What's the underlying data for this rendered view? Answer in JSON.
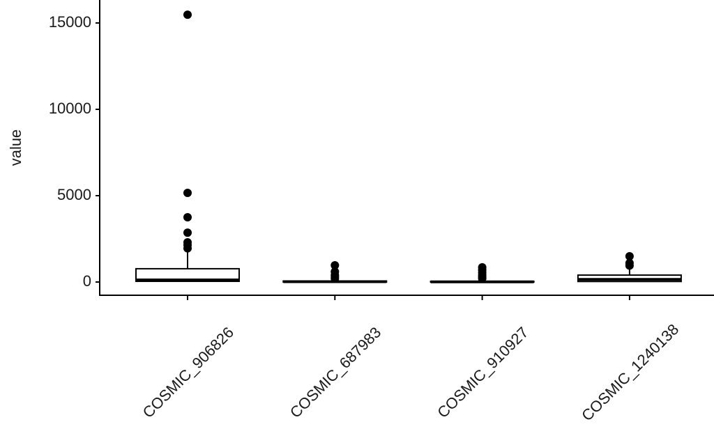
{
  "chart_data": {
    "type": "boxplot",
    "y_label": "value",
    "categories": [
      "COSMIC_906826",
      "COSMIC_687983",
      "COSMIC_910927",
      "COSMIC_1240138"
    ],
    "boxes": [
      {
        "min": 0,
        "q1": 40,
        "median": 120,
        "q3": 770,
        "max": 1900,
        "outliers": [
          15480,
          5160,
          3750,
          2860,
          2300,
          2140,
          1950
        ]
      },
      {
        "min": 0,
        "q1": 0,
        "median": 20,
        "q3": 60,
        "max": 150,
        "outliers": [
          970,
          600,
          400,
          300,
          200
        ]
      },
      {
        "min": 0,
        "q1": 0,
        "median": 10,
        "q3": 40,
        "max": 100,
        "outliers": [
          850,
          700,
          550,
          400,
          300,
          200
        ]
      },
      {
        "min": 0,
        "q1": 30,
        "median": 150,
        "q3": 400,
        "max": 800,
        "outliers": [
          1490,
          1100,
          950
        ]
      }
    ],
    "color": "#000000",
    "fill": "#ffffff",
    "ylim": [
      -766,
      16330
    ],
    "yticks": [
      0,
      5000,
      10000,
      15000
    ],
    "grid": false
  }
}
